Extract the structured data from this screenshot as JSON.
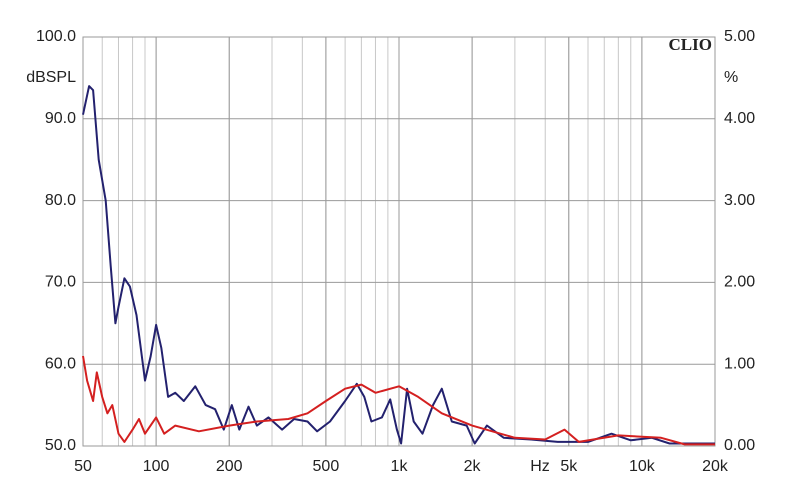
{
  "chart_data": {
    "type": "line",
    "brand": "CLIO",
    "ylabel": "dBSPL",
    "y2label": "%",
    "xlabel": "Hz",
    "xscale": "log",
    "xlim": [
      50,
      20000
    ],
    "xticks": [
      50,
      100,
      200,
      500,
      {
        "value": 1000,
        "label": "1k"
      },
      {
        "value": 2000,
        "label": "2k"
      },
      {
        "value": 5000,
        "label": "5k"
      },
      {
        "value": 10000,
        "label": "10k"
      },
      {
        "value": 20000,
        "label": "20k"
      }
    ],
    "ylim": [
      50,
      100
    ],
    "yticks": [
      {
        "value": 50,
        "label": "50.0"
      },
      {
        "value": 60,
        "label": "60.0"
      },
      {
        "value": 70,
        "label": "70.0"
      },
      {
        "value": 80,
        "label": "80.0"
      },
      {
        "value": 90,
        "label": "90.0"
      },
      {
        "value": 100,
        "label": "100.0"
      }
    ],
    "y2lim": [
      0,
      5
    ],
    "y2ticks": [
      {
        "value": 0,
        "label": "0.00"
      },
      {
        "value": 1,
        "label": "1.00"
      },
      {
        "value": 2,
        "label": "2.00"
      },
      {
        "value": 3,
        "label": "3.00"
      },
      {
        "value": 4,
        "label": "4.00"
      },
      {
        "value": 5,
        "label": "5.00"
      }
    ],
    "grid": true,
    "minor_grid": true,
    "series": [
      {
        "color": "#23216e",
        "axis": "y2",
        "x": [
          50,
          53,
          55,
          58,
          62,
          65,
          68,
          70,
          74,
          78,
          83,
          90,
          95,
          100,
          105,
          112,
          120,
          130,
          145,
          160,
          175,
          190,
          205,
          220,
          240,
          260,
          290,
          330,
          370,
          420,
          460,
          520,
          600,
          670,
          720,
          770,
          850,
          920,
          980,
          1020,
          1080,
          1150,
          1250,
          1380,
          1500,
          1650,
          1900,
          2050,
          2300,
          2700,
          3500,
          4500,
          6000,
          7500,
          9000,
          11000,
          13000,
          20000
        ],
        "values": [
          4.05,
          4.4,
          4.35,
          3.5,
          3.0,
          2.2,
          1.5,
          1.7,
          2.05,
          1.95,
          1.6,
          0.8,
          1.1,
          1.48,
          1.2,
          0.6,
          0.65,
          0.55,
          0.73,
          0.5,
          0.45,
          0.2,
          0.5,
          0.2,
          0.48,
          0.25,
          0.35,
          0.2,
          0.33,
          0.3,
          0.18,
          0.3,
          0.55,
          0.76,
          0.6,
          0.3,
          0.35,
          0.57,
          0.2,
          0.03,
          0.7,
          0.3,
          0.15,
          0.5,
          0.7,
          0.3,
          0.25,
          0.03,
          0.25,
          0.1,
          0.08,
          0.05,
          0.05,
          0.15,
          0.07,
          0.1,
          0.03,
          0.03
        ]
      },
      {
        "color": "#d42020",
        "axis": "y2",
        "x": [
          50,
          52,
          55,
          57,
          60,
          63,
          66,
          70,
          74,
          80,
          85,
          90,
          100,
          108,
          120,
          150,
          200,
          260,
          350,
          420,
          500,
          600,
          700,
          800,
          1000,
          1200,
          1500,
          2000,
          3000,
          4000,
          4800,
          5500,
          8000,
          12000,
          15000,
          20000
        ],
        "values": [
          1.1,
          0.8,
          0.55,
          0.9,
          0.6,
          0.4,
          0.5,
          0.15,
          0.05,
          0.2,
          0.33,
          0.15,
          0.35,
          0.15,
          0.25,
          0.18,
          0.25,
          0.3,
          0.33,
          0.4,
          0.55,
          0.7,
          0.75,
          0.65,
          0.73,
          0.6,
          0.4,
          0.25,
          0.1,
          0.08,
          0.2,
          0.05,
          0.13,
          0.1,
          0.02,
          0.02
        ]
      }
    ]
  }
}
